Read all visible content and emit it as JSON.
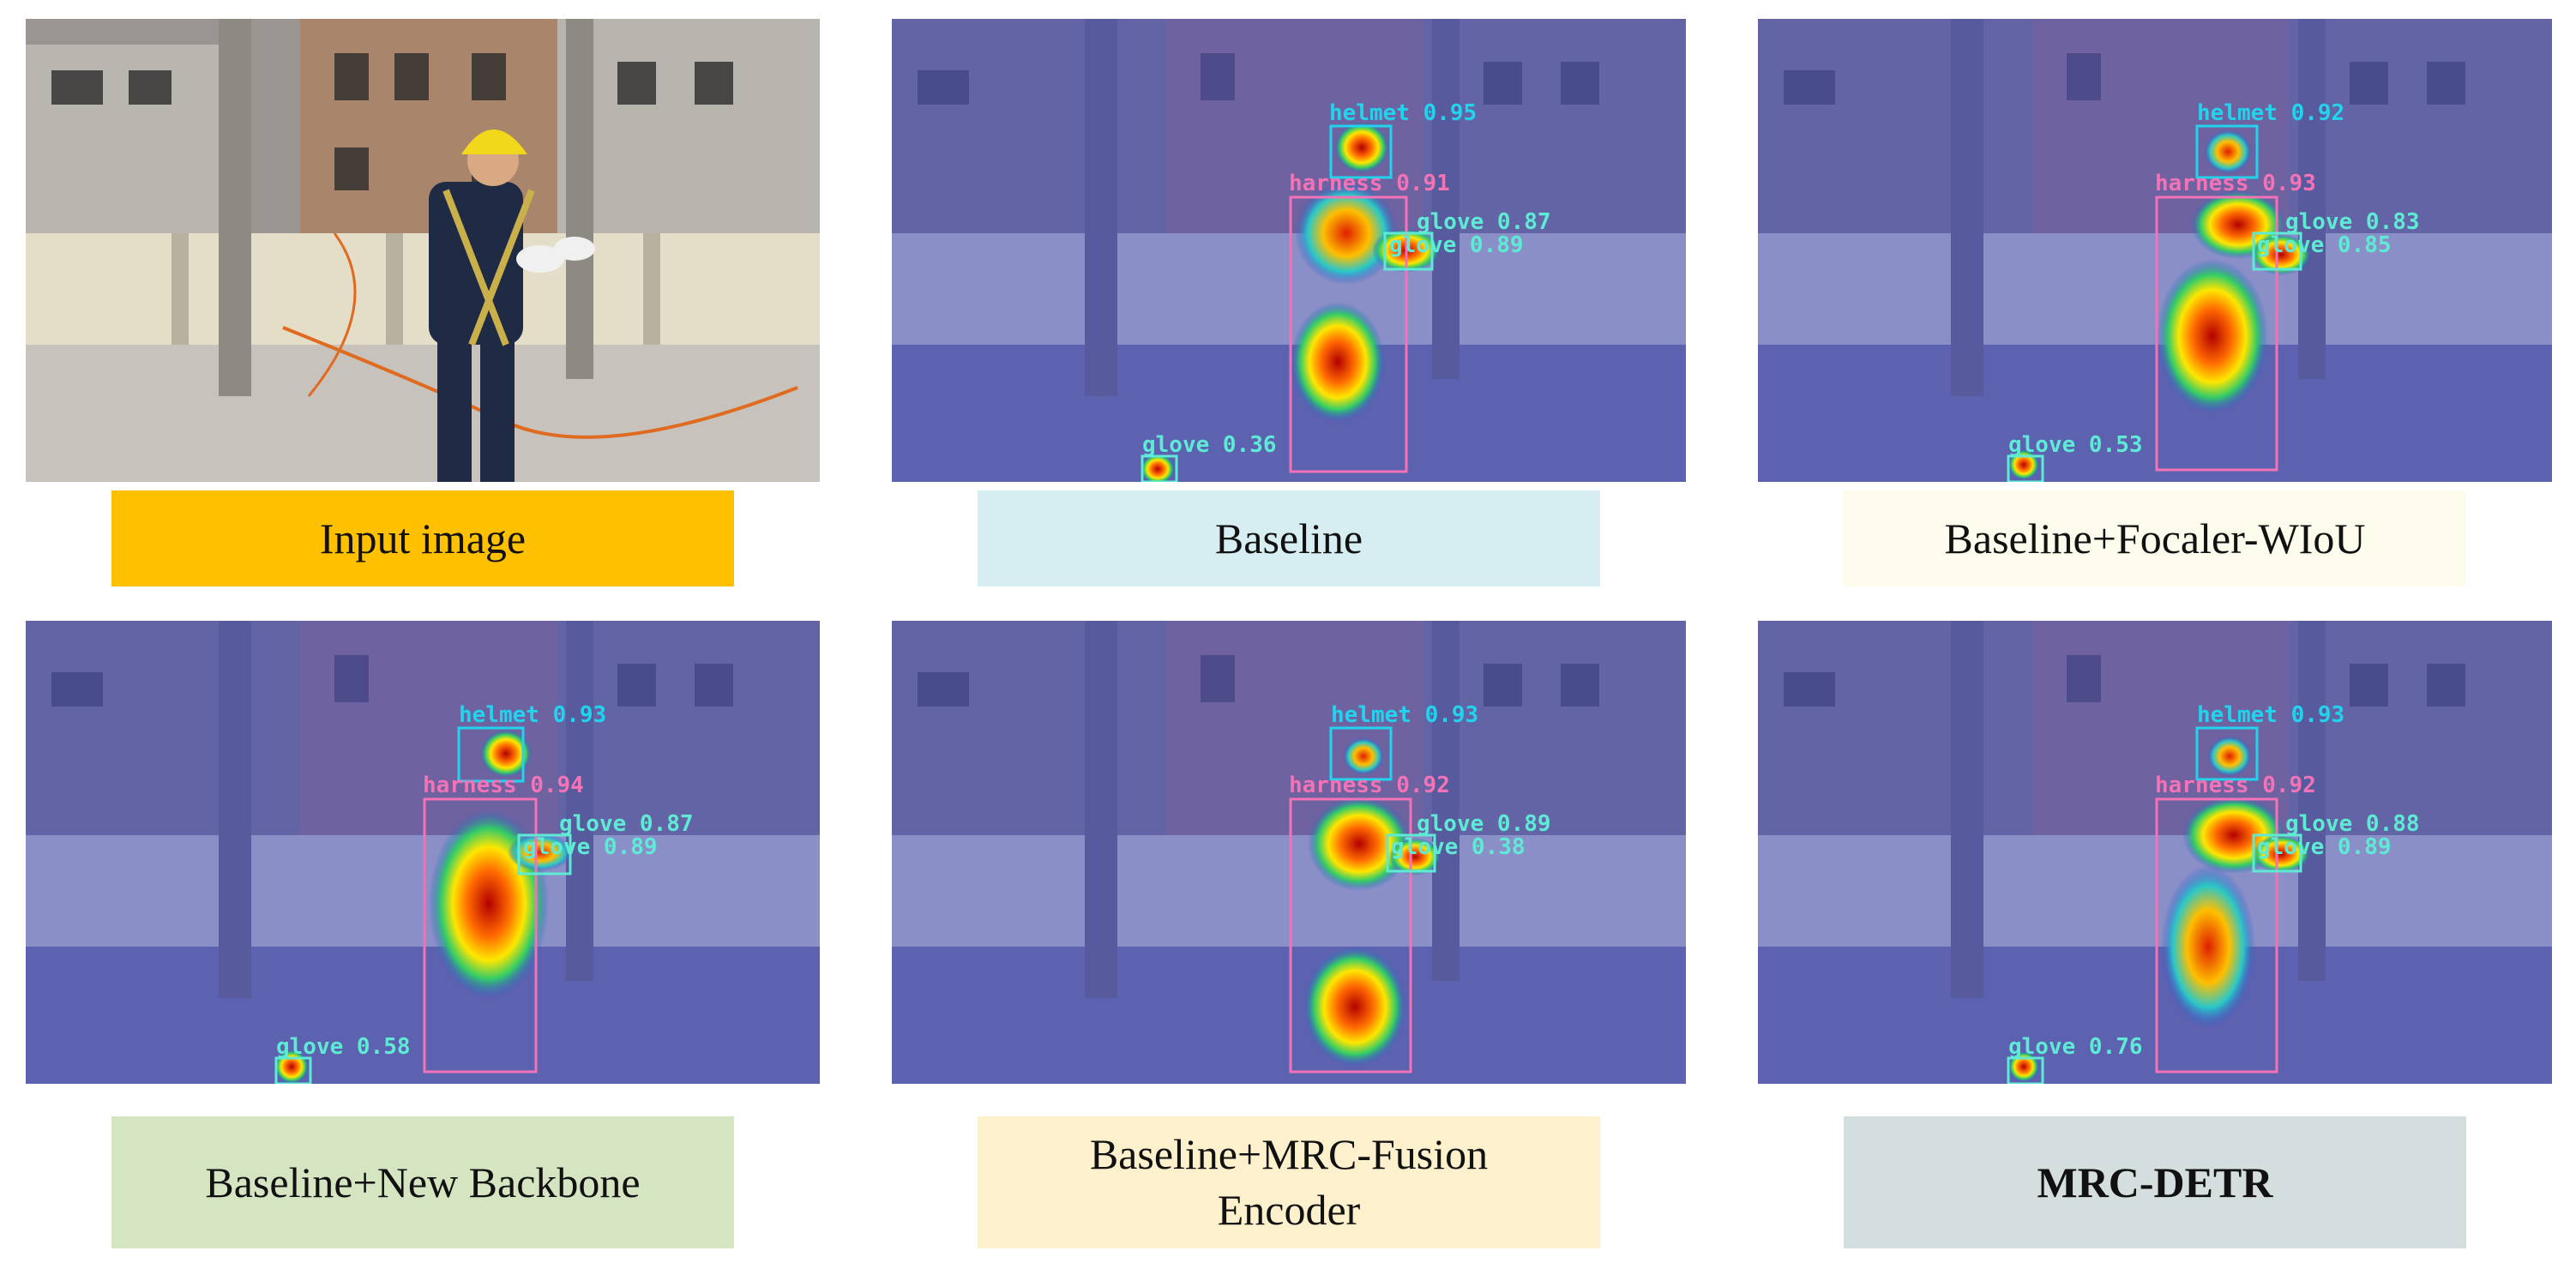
{
  "captions": {
    "input": "Input image",
    "baseline": "Baseline",
    "focaler": "Baseline+Focaler-WIoU",
    "backbone": "Baseline+New Backbone",
    "mrc_fusion": "Baseline+MRC-Fusion Encoder",
    "mrc_detr": "MRC-DETR"
  },
  "caption_colors": {
    "input": "#FFC000",
    "baseline": "#D6EDF2",
    "focaler": "#FDFBEB",
    "backbone": "#D5E4C1",
    "mrc_fusion": "#FDF0CC",
    "mrc_detr": "#D4DEDE"
  },
  "detections": {
    "baseline": {
      "helmet": "helmet 0.95",
      "harness": "harness 0.91",
      "glove_a": "glove 0.87",
      "glove_b": "glove 0.89",
      "glove_c": "glove 0.36"
    },
    "focaler": {
      "helmet": "helmet 0.92",
      "harness": "harness 0.93",
      "glove_a": "glove 0.83",
      "glove_b": "glove 0.85",
      "glove_c": "glove 0.53"
    },
    "backbone": {
      "helmet": "helmet 0.93",
      "harness": "harness 0.94",
      "glove_a": "glove 0.87",
      "glove_b": "glove 0.89",
      "glove_c": "glove 0.58"
    },
    "mrc_fusion": {
      "helmet": "helmet 0.93",
      "harness": "harness 0.92",
      "glove_a": "glove 0.89",
      "glove_b": "glove 0.38"
    },
    "mrc_detr": {
      "helmet": "helmet 0.93",
      "harness": "harness 0.92",
      "glove_a": "glove 0.88",
      "glove_b": "glove 0.89",
      "glove_c": "glove 0.76"
    }
  },
  "colors": {
    "helmet_box": "#22D3EE",
    "harness_box": "#F472B6",
    "glove_box": "#5EEAD4",
    "overlay": "#4B4FB8"
  }
}
